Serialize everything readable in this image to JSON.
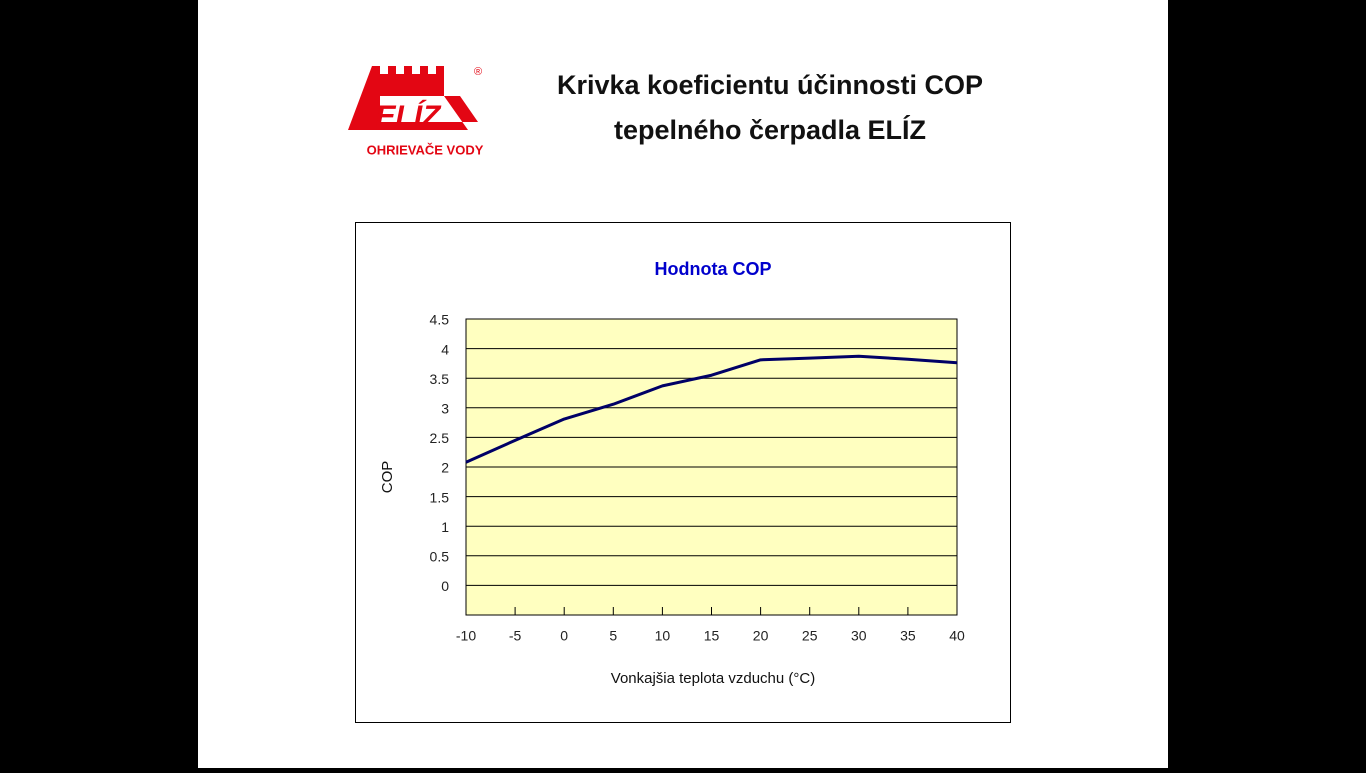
{
  "logo": {
    "brand": "ELÍZ",
    "registered": "®",
    "tagline": "OHRIEVAČE VODY"
  },
  "slide_title": [
    "Krivka koeficientu účinnosti COP",
    "tepelného čerpadla ELÍZ"
  ],
  "chart_data": {
    "type": "line",
    "title": "Hodnota COP",
    "x_label": "Vonkajšia teplota vzduchu (°C)",
    "y_label": "COP",
    "series": [
      {
        "name": "COP",
        "color": "#000066",
        "x": [
          -10,
          -5,
          0,
          5,
          10,
          15,
          20,
          25,
          30,
          35,
          40
        ],
        "values": [
          2.08,
          2.45,
          2.81,
          3.06,
          3.37,
          3.55,
          3.81,
          3.84,
          3.87,
          3.82,
          3.76
        ]
      }
    ],
    "xlim": [
      -10,
      40
    ],
    "xticks": [
      -10,
      -5,
      0,
      5,
      10,
      15,
      20,
      25,
      30,
      35,
      40
    ],
    "ylim": [
      -0.5,
      4.5
    ],
    "yticks": [
      0,
      0.5,
      1,
      1.5,
      2,
      2.5,
      3,
      3.5,
      4,
      4.5
    ],
    "grid": true,
    "plot_background": "#ffffc0"
  }
}
